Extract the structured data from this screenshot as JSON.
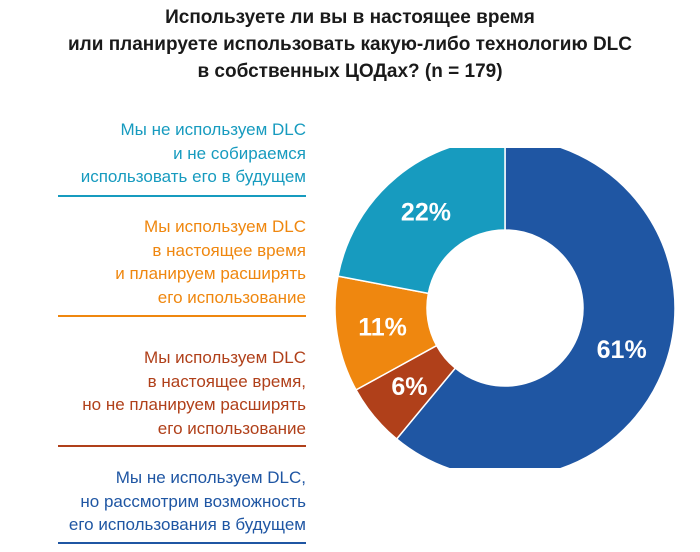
{
  "chart_data": {
    "type": "pie",
    "title": [
      "Используете ли вы в настоящее время",
      "или планируете использовать какую-либо технологию DLC",
      "в собственных ЦОДах? (n = 179)"
    ],
    "legend_placement": "left",
    "slices": [
      {
        "label": [
          "Мы не используем DLC,",
          "но рассмотрим возможность",
          "его использования в будущем"
        ],
        "value": 61,
        "value_label": "61%",
        "color": "#1f56a3"
      },
      {
        "label": [
          "Мы используем DLC",
          "в настоящее время,",
          "но не планируем расширять",
          "его использование"
        ],
        "value": 6,
        "value_label": "6%",
        "color": "#b0401a"
      },
      {
        "label": [
          "Мы используем DLC",
          "в настоящее время",
          "и планируем расширять",
          "его использование"
        ],
        "value": 11,
        "value_label": "11%",
        "color": "#ef870f"
      },
      {
        "label": [
          "Мы не используем DLC",
          "и не собираемся",
          "использовать его в будущем"
        ],
        "value": 22,
        "value_label": "22%",
        "color": "#179bbf"
      }
    ]
  }
}
